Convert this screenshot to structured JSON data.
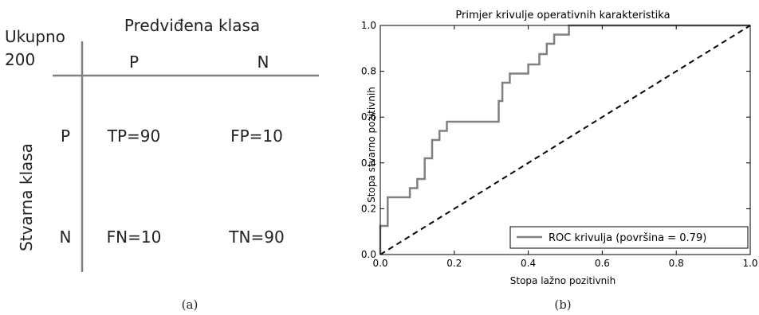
{
  "confusion_matrix": {
    "total_label": "Ukupno",
    "total_value": "200",
    "predicted_header": "Predviđena klasa",
    "actual_header": "Stvarna klasa",
    "col_labels": [
      "P",
      "N"
    ],
    "row_labels": [
      "P",
      "N"
    ],
    "cells": [
      [
        "TP=90",
        "FP=10"
      ],
      [
        "FN=10",
        "TN=90"
      ]
    ],
    "caption": "(a)"
  },
  "chart_data": {
    "type": "line",
    "title": "Primjer krivulje operativnih karakteristika",
    "xlabel": "Stopa lažno pozitivnih",
    "ylabel": "Stopa stvarno pozitivnih",
    "xlim": [
      0,
      1
    ],
    "ylim": [
      0,
      1
    ],
    "x_ticks": [
      "0.0",
      "0.2",
      "0.4",
      "0.6",
      "0.8",
      "1.0"
    ],
    "y_ticks": [
      "0.0",
      "0.2",
      "0.4",
      "0.6",
      "0.8",
      "1.0"
    ],
    "legend_position": "bottom-right",
    "series": [
      {
        "name": "ROC krivulja (površina = 0.79)",
        "color": "#808080",
        "style": "solid",
        "x": [
          0,
          0,
          0.02,
          0.02,
          0.08,
          0.08,
          0.1,
          0.1,
          0.12,
          0.12,
          0.14,
          0.14,
          0.16,
          0.16,
          0.18,
          0.18,
          0.32,
          0.32,
          0.33,
          0.33,
          0.35,
          0.35,
          0.4,
          0.4,
          0.43,
          0.43,
          0.45,
          0.45,
          0.47,
          0.47,
          0.51,
          0.51,
          0.57,
          0.57,
          1.0
        ],
        "y": [
          0,
          0.125,
          0.125,
          0.25,
          0.25,
          0.29,
          0.29,
          0.33,
          0.33,
          0.42,
          0.42,
          0.5,
          0.5,
          0.54,
          0.54,
          0.58,
          0.58,
          0.67,
          0.67,
          0.75,
          0.75,
          0.79,
          0.79,
          0.83,
          0.83,
          0.875,
          0.875,
          0.92,
          0.92,
          0.96,
          0.96,
          1.0,
          1.0,
          1.0,
          1.0
        ]
      },
      {
        "name": "",
        "color": "#000000",
        "style": "dashed",
        "x": [
          0,
          1
        ],
        "y": [
          0,
          1
        ]
      }
    ],
    "caption": "(b)"
  }
}
